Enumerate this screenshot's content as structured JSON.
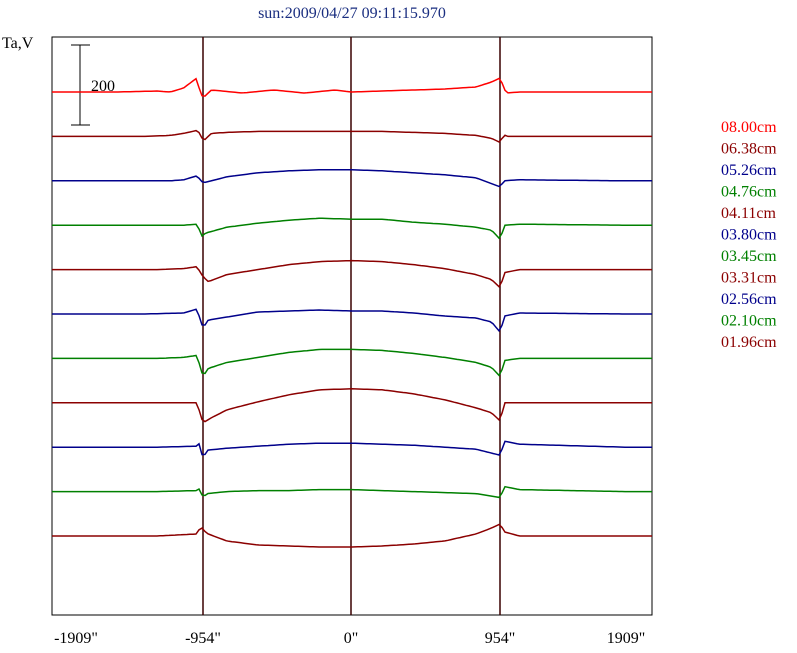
{
  "chart_data": {
    "type": "line",
    "title": "sun:2009/04/27 09:11:15.970",
    "ylabel": "Ta,V",
    "scale_bar_label": "200",
    "x_ticks": [
      "-1909\"",
      "-954\"",
      "0\"",
      "954\"",
      "1909\""
    ],
    "x_tick_values": [
      -1909,
      -954,
      0,
      954,
      1909
    ],
    "xlim": [
      -1909,
      1909
    ],
    "vertical_markers": [
      -954,
      0,
      954
    ],
    "grid": false,
    "legend_placement": "right",
    "series": [
      {
        "name": "08.00cm",
        "color": "#ff0000",
        "profile": [
          [
            -1909,
            0
          ],
          [
            -1600,
            0
          ],
          [
            -1300,
            -1
          ],
          [
            -1200,
            0
          ],
          [
            -1100,
            -4
          ],
          [
            -1000,
            -14
          ],
          [
            -980,
            -2
          ],
          [
            -954,
            6
          ],
          [
            -900,
            -2
          ],
          [
            -700,
            1
          ],
          [
            -500,
            -2
          ],
          [
            -300,
            1
          ],
          [
            -100,
            -2
          ],
          [
            0,
            0
          ],
          [
            200,
            -1
          ],
          [
            400,
            -2
          ],
          [
            600,
            -3
          ],
          [
            800,
            -5
          ],
          [
            900,
            -10
          ],
          [
            954,
            -14
          ],
          [
            985,
            -4
          ],
          [
            1000,
            1
          ],
          [
            1100,
            0
          ],
          [
            1300,
            0
          ],
          [
            1909,
            0
          ]
        ]
      },
      {
        "name": "06.38cm",
        "color": "#8b0000",
        "profile": [
          [
            -1909,
            0
          ],
          [
            -1400,
            0
          ],
          [
            -1200,
            -1
          ],
          [
            -1100,
            -3
          ],
          [
            -1000,
            -6
          ],
          [
            -970,
            -2
          ],
          [
            -954,
            5
          ],
          [
            -900,
            -3
          ],
          [
            -800,
            -4
          ],
          [
            -600,
            -5
          ],
          [
            -400,
            -5
          ],
          [
            -200,
            -5
          ],
          [
            0,
            -5
          ],
          [
            200,
            -5
          ],
          [
            400,
            -4
          ],
          [
            600,
            -3
          ],
          [
            800,
            -1
          ],
          [
            900,
            2
          ],
          [
            954,
            6
          ],
          [
            985,
            -2
          ],
          [
            1000,
            0
          ],
          [
            1300,
            0
          ],
          [
            1909,
            0
          ]
        ]
      },
      {
        "name": "05.26cm",
        "color": "#00008b",
        "profile": [
          [
            -1909,
            0
          ],
          [
            -1400,
            0
          ],
          [
            -1200,
            0
          ],
          [
            -1100,
            -1
          ],
          [
            -1000,
            -5
          ],
          [
            -954,
            2
          ],
          [
            -900,
            0
          ],
          [
            -800,
            -4
          ],
          [
            -600,
            -8
          ],
          [
            -400,
            -10
          ],
          [
            -200,
            -11
          ],
          [
            0,
            -11
          ],
          [
            200,
            -10
          ],
          [
            400,
            -8
          ],
          [
            600,
            -6
          ],
          [
            800,
            -3
          ],
          [
            954,
            6
          ],
          [
            985,
            0
          ],
          [
            1100,
            -1
          ],
          [
            1909,
            0
          ]
        ]
      },
      {
        "name": "04.76cm",
        "color": "#008000",
        "profile": [
          [
            -1909,
            0
          ],
          [
            -1300,
            0
          ],
          [
            -1100,
            0
          ],
          [
            -1000,
            -1
          ],
          [
            -954,
            13
          ],
          [
            -940,
            8
          ],
          [
            -800,
            2
          ],
          [
            -600,
            -2
          ],
          [
            -400,
            -5
          ],
          [
            -200,
            -7
          ],
          [
            0,
            -6
          ],
          [
            200,
            -6
          ],
          [
            400,
            -3
          ],
          [
            600,
            -1
          ],
          [
            800,
            2
          ],
          [
            900,
            5
          ],
          [
            954,
            14
          ],
          [
            990,
            0
          ],
          [
            1100,
            -1
          ],
          [
            1909,
            0
          ]
        ]
      },
      {
        "name": "04.11cm",
        "color": "#8b0000",
        "profile": [
          [
            -1909,
            0
          ],
          [
            -1300,
            0
          ],
          [
            -1100,
            -1
          ],
          [
            -1000,
            -3
          ],
          [
            -954,
            7
          ],
          [
            -920,
            12
          ],
          [
            -800,
            5
          ],
          [
            -600,
            0
          ],
          [
            -400,
            -5
          ],
          [
            -200,
            -8
          ],
          [
            0,
            -9
          ],
          [
            200,
            -8
          ],
          [
            400,
            -5
          ],
          [
            600,
            -1
          ],
          [
            800,
            5
          ],
          [
            900,
            10
          ],
          [
            954,
            18
          ],
          [
            990,
            3
          ],
          [
            1100,
            0
          ],
          [
            1909,
            0
          ]
        ]
      },
      {
        "name": "03.80cm",
        "color": "#00008b",
        "profile": [
          [
            -1909,
            0
          ],
          [
            -1400,
            0
          ],
          [
            -1100,
            -1
          ],
          [
            -1000,
            -5
          ],
          [
            -954,
            14
          ],
          [
            -920,
            6
          ],
          [
            -800,
            3
          ],
          [
            -600,
            -2
          ],
          [
            -400,
            -3
          ],
          [
            -200,
            -4
          ],
          [
            0,
            -3
          ],
          [
            200,
            -3
          ],
          [
            400,
            -1
          ],
          [
            600,
            2
          ],
          [
            800,
            4
          ],
          [
            900,
            8
          ],
          [
            954,
            18
          ],
          [
            990,
            2
          ],
          [
            1100,
            -1
          ],
          [
            1909,
            0
          ]
        ]
      },
      {
        "name": "03.45cm",
        "color": "#008000",
        "profile": [
          [
            -1909,
            0
          ],
          [
            -1300,
            0
          ],
          [
            -1100,
            -1
          ],
          [
            -1000,
            -3
          ],
          [
            -954,
            18
          ],
          [
            -920,
            10
          ],
          [
            -800,
            4
          ],
          [
            -600,
            -1
          ],
          [
            -400,
            -6
          ],
          [
            -200,
            -9
          ],
          [
            0,
            -9
          ],
          [
            200,
            -8
          ],
          [
            400,
            -5
          ],
          [
            600,
            -1
          ],
          [
            800,
            4
          ],
          [
            900,
            9
          ],
          [
            954,
            18
          ],
          [
            990,
            2
          ],
          [
            1100,
            0
          ],
          [
            1909,
            0
          ]
        ]
      },
      {
        "name": "03.31cm",
        "color": "#8b0000",
        "profile": [
          [
            -1909,
            0
          ],
          [
            -1300,
            0
          ],
          [
            -1100,
            0
          ],
          [
            -1000,
            0
          ],
          [
            -954,
            20
          ],
          [
            -900,
            15
          ],
          [
            -800,
            7
          ],
          [
            -600,
            -1
          ],
          [
            -400,
            -8
          ],
          [
            -200,
            -13
          ],
          [
            0,
            -14
          ],
          [
            200,
            -13
          ],
          [
            400,
            -9
          ],
          [
            600,
            -3
          ],
          [
            800,
            5
          ],
          [
            900,
            10
          ],
          [
            954,
            18
          ],
          [
            990,
            0
          ],
          [
            1100,
            0
          ],
          [
            1909,
            0
          ]
        ]
      },
      {
        "name": "02.56cm",
        "color": "#00008b",
        "profile": [
          [
            -1909,
            0
          ],
          [
            -1300,
            0
          ],
          [
            -1000,
            -1
          ],
          [
            -980,
            -4
          ],
          [
            -954,
            12
          ],
          [
            -930,
            3
          ],
          [
            -800,
            1
          ],
          [
            -600,
            -1
          ],
          [
            -400,
            -3
          ],
          [
            -200,
            -4
          ],
          [
            0,
            -4
          ],
          [
            200,
            -3
          ],
          [
            400,
            -2
          ],
          [
            600,
            0
          ],
          [
            800,
            2
          ],
          [
            954,
            8
          ],
          [
            990,
            -6
          ],
          [
            1100,
            -3
          ],
          [
            1909,
            0
          ]
        ]
      },
      {
        "name": "02.10cm",
        "color": "#008000",
        "profile": [
          [
            -1909,
            0
          ],
          [
            -1300,
            0
          ],
          [
            -1000,
            -1
          ],
          [
            -980,
            -3
          ],
          [
            -954,
            6
          ],
          [
            -930,
            2
          ],
          [
            -800,
            0
          ],
          [
            -600,
            -1
          ],
          [
            -400,
            -1
          ],
          [
            -200,
            -2
          ],
          [
            0,
            -2
          ],
          [
            200,
            -1
          ],
          [
            400,
            0
          ],
          [
            600,
            1
          ],
          [
            800,
            2
          ],
          [
            954,
            6
          ],
          [
            990,
            -5
          ],
          [
            1100,
            -2
          ],
          [
            1909,
            0
          ]
        ]
      },
      {
        "name": "01.96cm",
        "color": "#8b0000",
        "profile": [
          [
            -1909,
            0
          ],
          [
            -1300,
            0
          ],
          [
            -1000,
            -2
          ],
          [
            -970,
            -10
          ],
          [
            -954,
            -6
          ],
          [
            -920,
            -2
          ],
          [
            -800,
            5
          ],
          [
            -600,
            9
          ],
          [
            -400,
            10
          ],
          [
            -200,
            11
          ],
          [
            0,
            11
          ],
          [
            200,
            10
          ],
          [
            400,
            8
          ],
          [
            600,
            5
          ],
          [
            800,
            -2
          ],
          [
            900,
            -8
          ],
          [
            954,
            -12
          ],
          [
            990,
            -4
          ],
          [
            1100,
            0
          ],
          [
            1909,
            0
          ]
        ]
      }
    ]
  }
}
